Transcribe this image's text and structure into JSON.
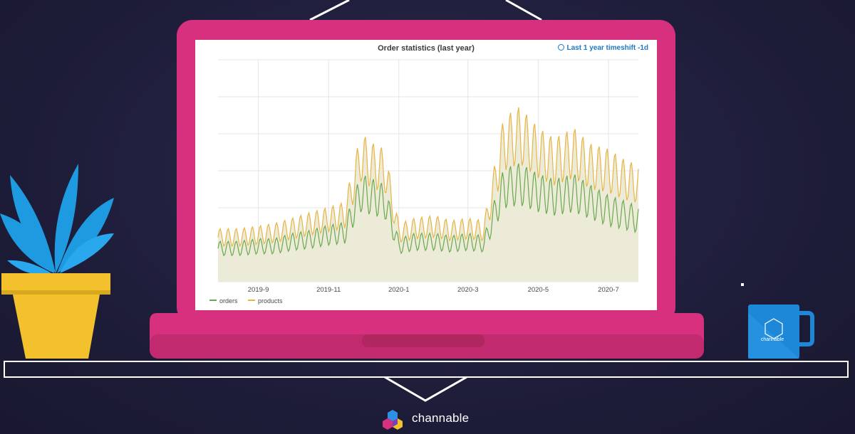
{
  "panel": {
    "title": "Order statistics (last year)",
    "timeshift": "Last 1 year timeshift -1d"
  },
  "brand": {
    "name": "channable",
    "mug_label": "channable"
  },
  "colors": {
    "laptop": "#d6307f",
    "laptop_base": "#c92c77",
    "orders": "#6aa84f",
    "products": "#e8b545",
    "fill": "#ecebd8",
    "pot": "#f3c12c",
    "leaves": "#1e9be0",
    "mug": "#1e88d8"
  },
  "icons": [
    "clock-icon",
    "plant-icon",
    "mug-icon",
    "channable-logo-icon"
  ],
  "chart_data": {
    "type": "line",
    "title": "Order statistics (last year)",
    "x_ticks": [
      "2019-9",
      "2019-11",
      "2020-1",
      "2020-3",
      "2020-5",
      "2020-7"
    ],
    "xlim": [
      "2019-07-28",
      "2020-07-27"
    ],
    "y_tick_labels_visible": false,
    "ylim": [
      0,
      100
    ],
    "grid": true,
    "legend": "bottom-left",
    "series": [
      {
        "name": "orders",
        "x": [
          "2019-08-01",
          "2019-08-15",
          "2019-09-01",
          "2019-09-15",
          "2019-10-01",
          "2019-10-15",
          "2019-11-01",
          "2019-11-15",
          "2019-11-29",
          "2019-12-10",
          "2019-12-20",
          "2020-01-01",
          "2020-01-15",
          "2020-02-01",
          "2020-02-15",
          "2020-03-01",
          "2020-03-15",
          "2020-04-01",
          "2020-04-15",
          "2020-05-01",
          "2020-05-15",
          "2020-06-01",
          "2020-06-15",
          "2020-07-01",
          "2020-07-15",
          "2020-07-27"
        ],
        "values": [
          15,
          15,
          16,
          16,
          18,
          19,
          21,
          22,
          40,
          38,
          36,
          16,
          18,
          18,
          17,
          18,
          17,
          42,
          44,
          40,
          38,
          40,
          36,
          32,
          30,
          28
        ]
      },
      {
        "name": "products",
        "x": [
          "2019-08-01",
          "2019-08-15",
          "2019-09-01",
          "2019-09-15",
          "2019-10-01",
          "2019-10-15",
          "2019-11-01",
          "2019-11-15",
          "2019-11-29",
          "2019-12-10",
          "2019-12-20",
          "2020-01-01",
          "2020-01-15",
          "2020-02-01",
          "2020-02-15",
          "2020-03-01",
          "2020-03-15",
          "2020-04-01",
          "2020-04-15",
          "2020-05-01",
          "2020-05-15",
          "2020-06-01",
          "2020-06-15",
          "2020-07-01",
          "2020-07-15",
          "2020-07-27"
        ],
        "values": [
          20,
          20,
          21,
          22,
          24,
          26,
          28,
          30,
          56,
          52,
          50,
          22,
          24,
          25,
          23,
          24,
          23,
          62,
          66,
          58,
          54,
          58,
          52,
          50,
          46,
          44
        ]
      }
    ]
  }
}
